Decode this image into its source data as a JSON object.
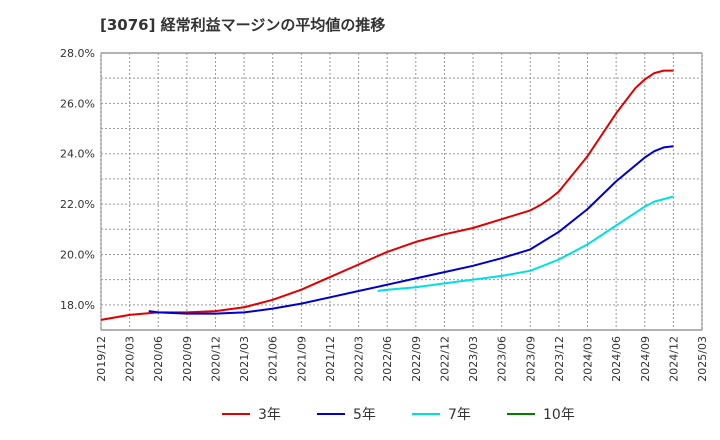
{
  "chart_data": {
    "type": "line",
    "title": "[3076]  経常利益マージンの平均値の推移",
    "xlabel": "",
    "ylabel": "",
    "ylim": [
      17.0,
      28.0
    ],
    "grid": true,
    "legend_position": "bottom",
    "y_ticks": [
      "28.0%",
      "26.0%",
      "24.0%",
      "22.0%",
      "20.0%",
      "18.0%"
    ],
    "x_ticks": [
      "2019/12",
      "2020/03",
      "2020/06",
      "2020/09",
      "2020/12",
      "2021/03",
      "2021/06",
      "2021/09",
      "2021/12",
      "2022/03",
      "2022/06",
      "2022/09",
      "2022/12",
      "2023/03",
      "2023/06",
      "2023/09",
      "2023/12",
      "2024/03",
      "2024/06",
      "2024/09",
      "2024/12",
      "2025/03"
    ],
    "series": [
      {
        "name": "3年",
        "color": "#e00000",
        "x": [
          "2019/12",
          "2020/03",
          "2020/06",
          "2020/09",
          "2020/12",
          "2021/03",
          "2021/06",
          "2021/09",
          "2021/12",
          "2022/03",
          "2022/06",
          "2022/09",
          "2022/12",
          "2023/03",
          "2023/06",
          "2023/09",
          "2023/10",
          "2023/11",
          "2023/12",
          "2024/03",
          "2024/06",
          "2024/08",
          "2024/09",
          "2024/10",
          "2024/11",
          "2024/12"
        ],
        "values": [
          17.4,
          17.6,
          17.7,
          17.7,
          17.75,
          17.9,
          18.2,
          18.6,
          19.1,
          19.6,
          20.1,
          20.5,
          20.8,
          21.05,
          21.4,
          21.75,
          21.95,
          22.2,
          22.5,
          23.9,
          25.6,
          26.6,
          26.95,
          27.2,
          27.3,
          27.3
        ]
      },
      {
        "name": "5年",
        "color": "#0000cc",
        "x": [
          "2020/05",
          "2020/06",
          "2020/09",
          "2020/12",
          "2021/03",
          "2021/06",
          "2021/09",
          "2021/12",
          "2022/03",
          "2022/06",
          "2022/09",
          "2022/12",
          "2023/03",
          "2023/06",
          "2023/09",
          "2023/12",
          "2024/03",
          "2024/06",
          "2024/09",
          "2024/10",
          "2024/11",
          "2024/12"
        ],
        "values": [
          17.75,
          17.7,
          17.65,
          17.65,
          17.7,
          17.85,
          18.05,
          18.3,
          18.55,
          18.8,
          19.05,
          19.3,
          19.55,
          19.85,
          20.2,
          20.9,
          21.8,
          22.9,
          23.85,
          24.1,
          24.25,
          24.3
        ]
      },
      {
        "name": "7年",
        "color": "#00e0e0",
        "x": [
          "2022/05",
          "2022/06",
          "2022/09",
          "2022/12",
          "2023/03",
          "2023/06",
          "2023/09",
          "2023/12",
          "2024/03",
          "2024/06",
          "2024/09",
          "2024/10",
          "2024/11",
          "2024/12"
        ],
        "values": [
          18.55,
          18.6,
          18.7,
          18.85,
          19.0,
          19.15,
          19.35,
          19.8,
          20.4,
          21.15,
          21.9,
          22.1,
          22.2,
          22.3
        ]
      },
      {
        "name": "10年",
        "color": "#008000",
        "x": [],
        "values": []
      }
    ]
  }
}
